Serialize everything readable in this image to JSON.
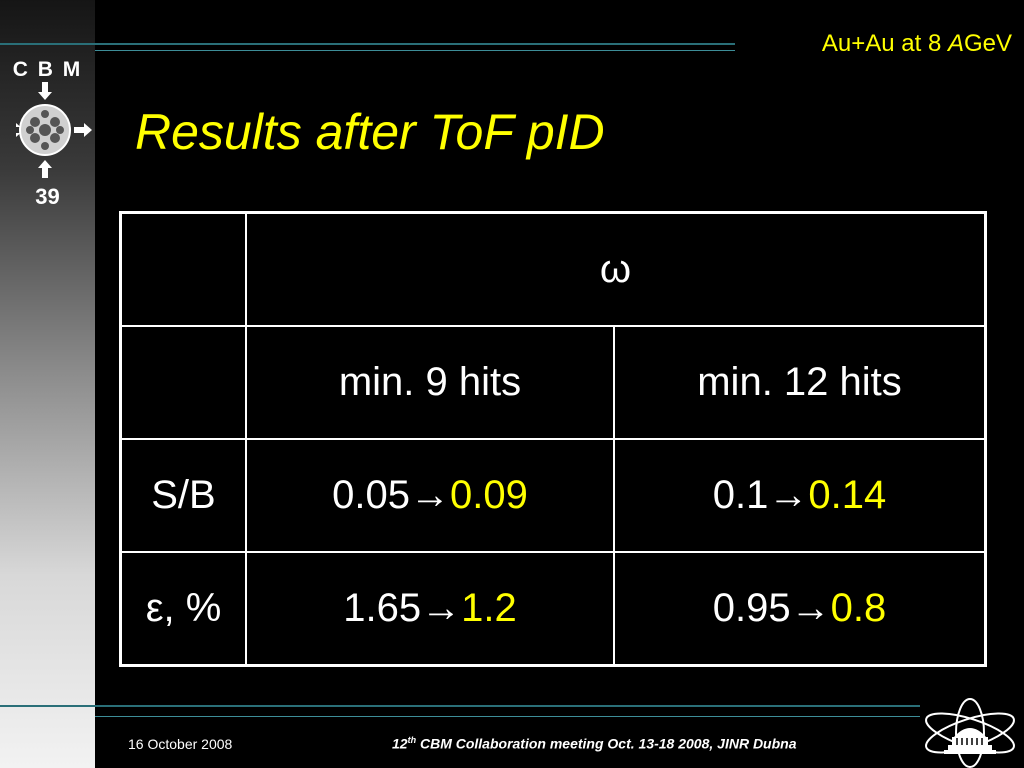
{
  "sidebar": {
    "logo_text": "C B M",
    "slide_number": "39"
  },
  "header": {
    "subtitle_prefix": "Au+Au at 8 ",
    "subtitle_italic": "A",
    "subtitle_suffix": "GeV",
    "title": "Results after ToF pID"
  },
  "table": {
    "group_header": "ω",
    "columns": [
      "min. 9 hits",
      "min. 12 hits"
    ],
    "rows": [
      {
        "label": "S/B",
        "cells": [
          {
            "before": "0.05",
            "arrow": "→",
            "after": "0.09"
          },
          {
            "before": "0.1",
            "arrow": "→",
            "after": "0.14"
          }
        ]
      },
      {
        "label": "ε, %",
        "cells": [
          {
            "before": "1.65",
            "arrow": "→",
            "after": "1.2"
          },
          {
            "before": "0.95",
            "arrow": "→",
            "after": "0.8"
          }
        ]
      }
    ]
  },
  "footer": {
    "date": "16 October 2008",
    "conf_num": "12",
    "conf_sup": "th",
    "conf_text": " CBM  Collaboration meeting Oct. 13-18 2008, JINR Dubna"
  },
  "colors": {
    "background": "#000000",
    "title": "#ffff00",
    "highlight_value": "#ffff00",
    "text": "#ffffff",
    "accent_line": "#2a6f78"
  }
}
